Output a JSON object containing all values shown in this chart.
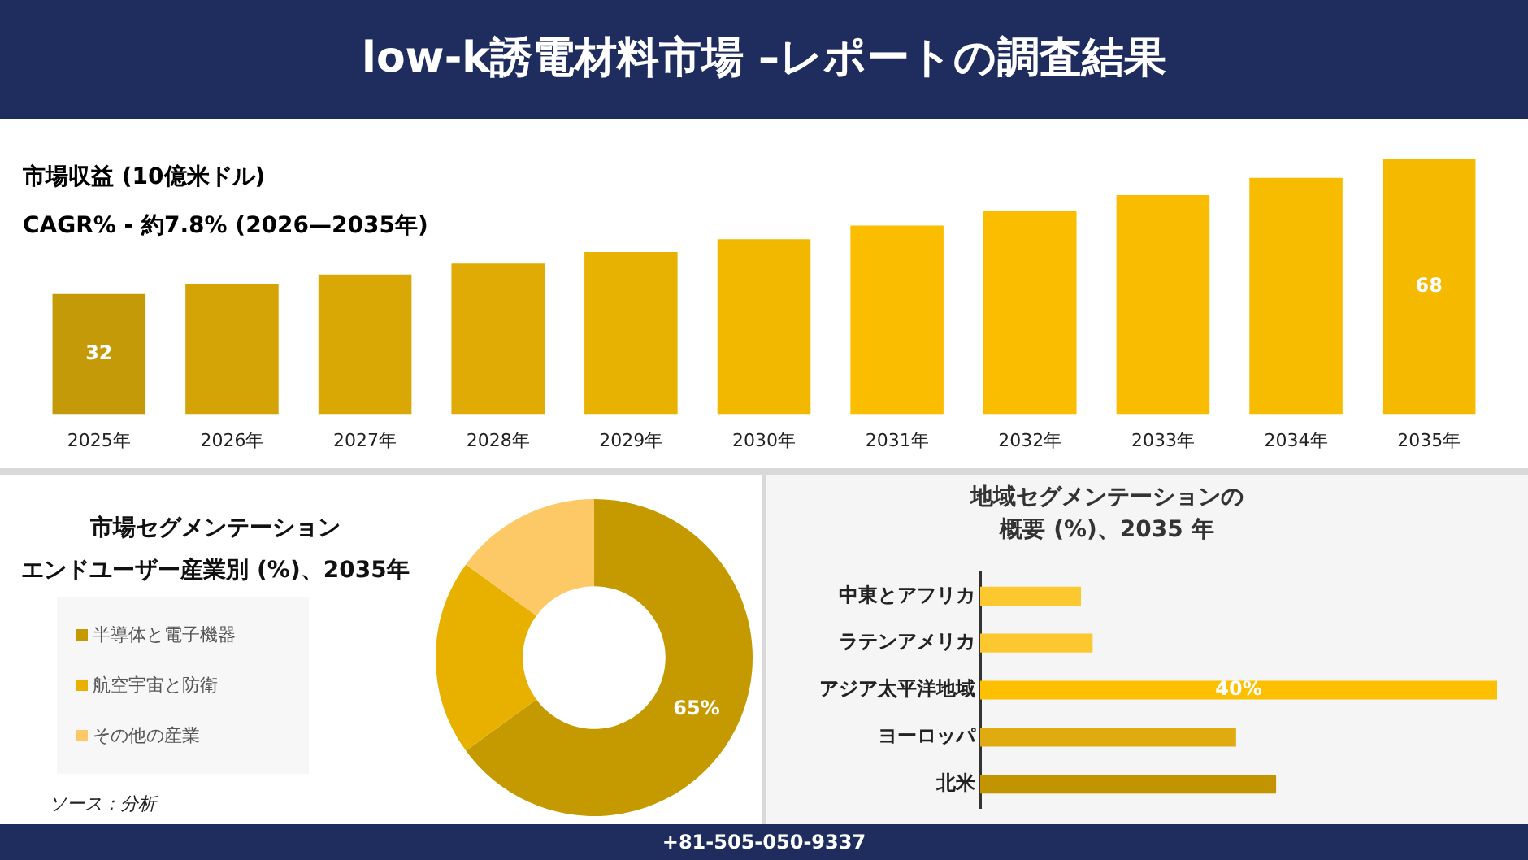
{
  "chart_data": [
    {
      "type": "bar",
      "title": "low-k誘電材料市場 –レポートの調査結果",
      "subtitle": "市場収益 (10億米ドル)",
      "annotations": [
        "CAGR% - 約7.8% (2026—2035年)"
      ],
      "categories": [
        "2025年",
        "2026年",
        "2027年",
        "2028年",
        "2029年",
        "2030年",
        "2031年",
        "2032年",
        "2033年",
        "2034年",
        "2035年"
      ],
      "values": [
        32,
        34.5,
        37.2,
        40.1,
        43.2,
        46.6,
        50.2,
        54.1,
        58.3,
        62.9,
        68
      ],
      "value_labels": [
        "32",
        null,
        null,
        null,
        null,
        null,
        null,
        null,
        null,
        null,
        "68"
      ],
      "colors": [
        "#c59a08",
        "#d4a306",
        "#d9a805",
        "#dfab04",
        "#e8b202",
        "#f2b800",
        "#fbbd00",
        "#fbbd00",
        "#f9bc00",
        "#f7bb00",
        "#f5ba00"
      ],
      "tick_labels": "x",
      "legend": false
    },
    {
      "type": "donut",
      "title": "市場セグメンテーション",
      "subtitle": "エンドユーザー産業別 (%)、2035年",
      "annotations": [
        "ソース：分析"
      ],
      "categories": [
        "半導体と電子機器",
        "航空宇宙と防衛",
        "その他の産業"
      ],
      "values": [
        65,
        20,
        15
      ],
      "value_labels": [
        "65%",
        null,
        null
      ],
      "colors": [
        "#c49a00",
        "#e8b100",
        "#fdc966"
      ],
      "legend": "left"
    },
    {
      "type": "bar",
      "orientation": "horizontal",
      "title": "地域セグメンテーションの",
      "subtitle": "概要 (%)、2035 年",
      "annotations": [
        "+81-505-050-9337"
      ],
      "categories": [
        "中東とアフリカ",
        "ラテンアメリカ",
        "アジア太平洋地域",
        "ヨーロッパ",
        "北米"
      ],
      "values": [
        7.8,
        8.7,
        40,
        19.8,
        22.9
      ],
      "value_labels": [
        null,
        null,
        "40%",
        null,
        null
      ],
      "colors": [
        "#fcc830",
        "#fcc830",
        "#fcc000",
        "#e0ab10",
        "#c29400"
      ],
      "tick_labels": "y",
      "legend": false
    }
  ]
}
